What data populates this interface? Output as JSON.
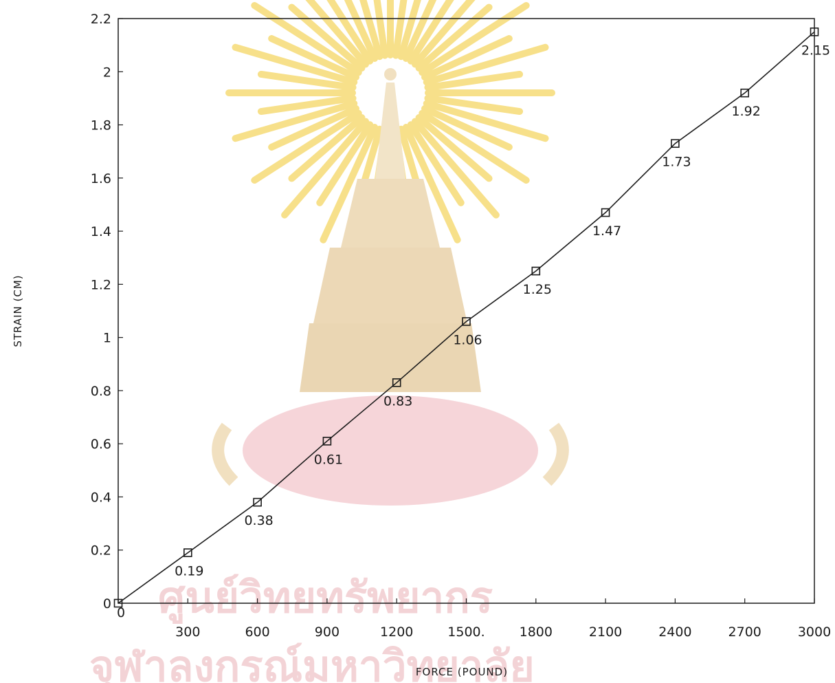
{
  "watermark": {
    "line1": "ศูนย์วิทยทรัพยากร",
    "line2": "จุฬาลงกรณ์มหาวิทยาลัย",
    "colors": {
      "rays": "#f7e08a",
      "emblem": "#f1e0c0",
      "text": "#f3d3d6"
    }
  },
  "chart_data": {
    "type": "line",
    "title": "",
    "xlabel": "FORCE (POUND)",
    "ylabel": "STRAIN (CM)",
    "xlim": [
      0,
      3000
    ],
    "ylim": [
      0,
      2.2
    ],
    "x_ticks": [
      "0",
      "300",
      "600",
      "900",
      "1200",
      "1500.",
      "1800",
      "2100",
      "2400",
      "2700",
      "3000"
    ],
    "y_ticks": [
      "0",
      "0.2",
      "0.4",
      "0.6",
      "0.8",
      "1",
      "1.2",
      "1.4",
      "1.6",
      "1.8",
      "2",
      "2.2"
    ],
    "grid": false,
    "marker": "open-square",
    "line_color": "#1a1a1a",
    "series": [
      {
        "x": [
          0,
          300,
          600,
          900,
          1200,
          1500,
          1800,
          2100,
          2400,
          2700,
          3000
        ],
        "values": [
          0,
          0.19,
          0.38,
          0.61,
          0.83,
          1.06,
          1.25,
          1.47,
          1.73,
          1.92,
          2.15
        ],
        "labels": [
          "",
          "0.19",
          "0.38",
          "0.61",
          "0.83",
          "1.06",
          "1.25",
          "1.47",
          "1.73",
          "1.92",
          "2.15"
        ]
      }
    ]
  }
}
